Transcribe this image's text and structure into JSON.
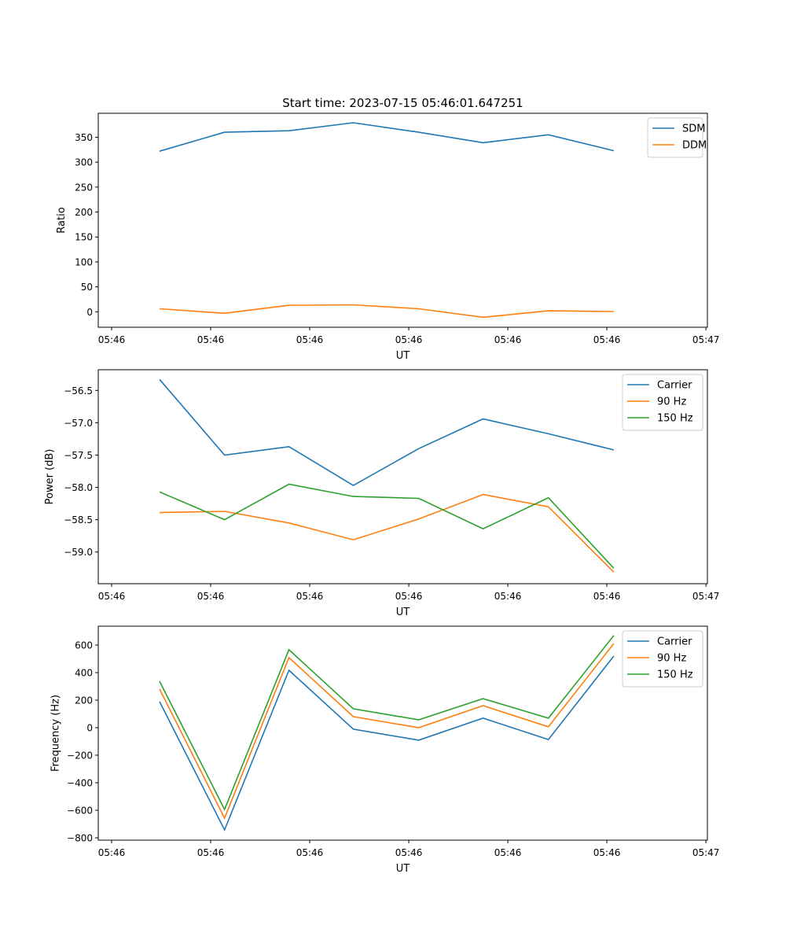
{
  "chart_data": [
    {
      "type": "line",
      "title": "Start time: 2023-07-15 05:46:01.647251",
      "xlabel": "UT",
      "ylabel": "Ratio",
      "x_unit": "seconds after 05:46:00",
      "x": [
        4.84,
        11.4,
        17.9,
        24.4,
        31.0,
        37.5,
        44.1,
        50.7
      ],
      "xlim": [
        -1.35,
        60.15
      ],
      "xticks": [
        0,
        10,
        20,
        30,
        40,
        50,
        60
      ],
      "xtick_labels": [
        "05:46",
        "05:46",
        "05:46",
        "05:46",
        "05:46",
        "05:46",
        "05:47"
      ],
      "ylim": [
        -31,
        398
      ],
      "yticks": [
        0,
        50,
        100,
        150,
        200,
        250,
        300,
        350
      ],
      "ytick_labels": [
        "0",
        "50",
        "100",
        "150",
        "200",
        "250",
        "300",
        "350"
      ],
      "legend": "top-right",
      "series": [
        {
          "name": "SDM",
          "color": "#1f77b4",
          "values": [
            322,
            360,
            363,
            379,
            360,
            339,
            355,
            323
          ]
        },
        {
          "name": "DDM",
          "color": "#ff7f0e",
          "values": [
            6,
            -3,
            13,
            14,
            6,
            -11,
            2,
            0.5
          ]
        }
      ]
    },
    {
      "type": "line",
      "title": "",
      "xlabel": "UT",
      "ylabel": "Power (dB)",
      "x_unit": "seconds after 05:46:00",
      "x": [
        4.84,
        11.4,
        17.9,
        24.4,
        31.0,
        37.5,
        44.1,
        50.7
      ],
      "xlim": [
        -1.35,
        60.15
      ],
      "xticks": [
        0,
        10,
        20,
        30,
        40,
        50,
        60
      ],
      "xtick_labels": [
        "05:46",
        "05:46",
        "05:46",
        "05:46",
        "05:46",
        "05:46",
        "05:47"
      ],
      "ylim": [
        -59.49,
        -56.18
      ],
      "yticks": [
        -59.0,
        -58.5,
        -58.0,
        -57.5,
        -57.0,
        -56.5
      ],
      "ytick_labels": [
        "−59.0",
        "−58.5",
        "−58.0",
        "−57.5",
        "−57.0",
        "−56.5"
      ],
      "legend": "top-right",
      "series": [
        {
          "name": "Carrier",
          "color": "#1f77b4",
          "values": [
            -56.33,
            -57.5,
            -57.37,
            -57.97,
            -57.4,
            -56.94,
            -57.17,
            -57.42
          ]
        },
        {
          "name": "90 Hz",
          "color": "#ff7f0e",
          "values": [
            -58.39,
            -58.37,
            -58.55,
            -58.81,
            -58.49,
            -58.11,
            -58.3,
            -59.31
          ]
        },
        {
          "name": "150 Hz",
          "color": "#2ca02c",
          "values": [
            -58.07,
            -58.5,
            -57.95,
            -58.14,
            -58.17,
            -58.64,
            -58.16,
            -59.25
          ]
        }
      ]
    },
    {
      "type": "line",
      "title": "",
      "xlabel": "UT",
      "ylabel": "Frequency (Hz)",
      "x_unit": "seconds after 05:46:00",
      "x": [
        4.84,
        11.4,
        17.9,
        24.4,
        31.0,
        37.5,
        44.1,
        50.7
      ],
      "xlim": [
        -1.35,
        60.15
      ],
      "xticks": [
        0,
        10,
        20,
        30,
        40,
        50,
        60
      ],
      "xtick_labels": [
        "05:46",
        "05:46",
        "05:46",
        "05:46",
        "05:46",
        "05:46",
        "05:47"
      ],
      "ylim": [
        -817,
        737
      ],
      "yticks": [
        -800,
        -600,
        -400,
        -200,
        0,
        200,
        400,
        600
      ],
      "ytick_labels": [
        "−800",
        "−600",
        "−400",
        "−200",
        "0",
        "200",
        "400",
        "600"
      ],
      "legend": "top-right",
      "series": [
        {
          "name": "Carrier",
          "color": "#1f77b4",
          "values": [
            189,
            -743,
            417,
            -11,
            -91,
            69,
            -86,
            520
          ]
        },
        {
          "name": "90 Hz",
          "color": "#ff7f0e",
          "values": [
            280,
            -657,
            509,
            80,
            0,
            160,
            6,
            611
          ]
        },
        {
          "name": "150 Hz",
          "color": "#2ca02c",
          "values": [
            337,
            -594,
            566,
            137,
            57,
            211,
            69,
            669
          ]
        }
      ]
    }
  ]
}
